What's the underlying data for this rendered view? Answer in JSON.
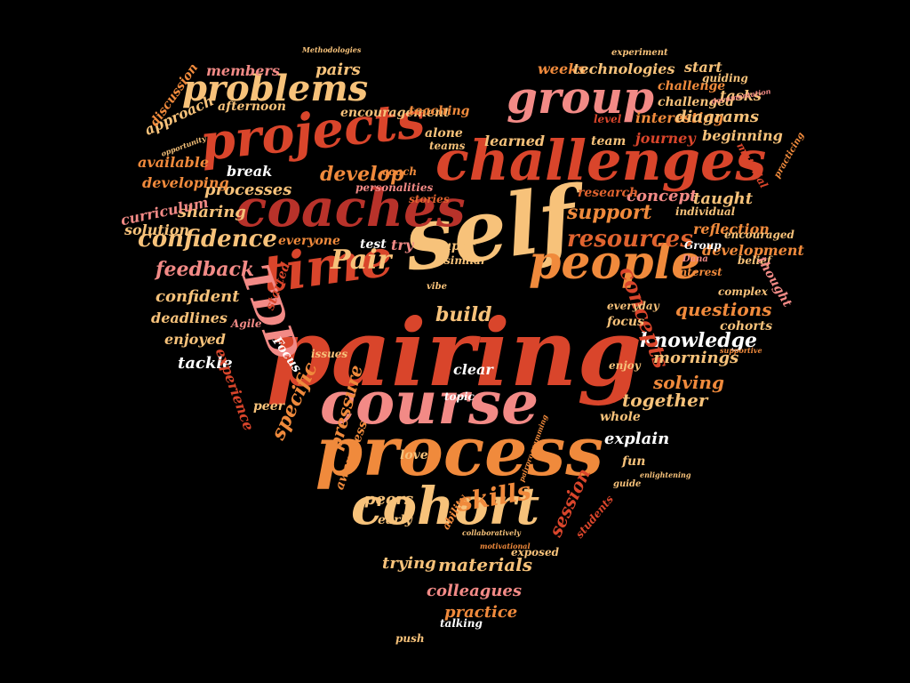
{
  "colors": {
    "background": "#000000",
    "palette": [
      "#d9452b",
      "#f08a3c",
      "#f7c27a",
      "#f28a86",
      "#b8322a",
      "#ffffff",
      "#e0632f"
    ]
  },
  "words": [
    {
      "text": "pairing",
      "size": 104,
      "color": "#d9452b"
    },
    {
      "text": "self",
      "size": 96,
      "color": "#f7c27a"
    },
    {
      "text": "process",
      "size": 76,
      "color": "#f08a3c"
    },
    {
      "text": "course",
      "size": 66,
      "color": "#f28a86"
    },
    {
      "text": "challenges",
      "size": 62,
      "color": "#d9452b"
    },
    {
      "text": "coaches",
      "size": 58,
      "color": "#b8322a"
    },
    {
      "text": "time",
      "size": 58,
      "color": "#d9452b"
    },
    {
      "text": "projects",
      "size": 56,
      "color": "#d9452b"
    },
    {
      "text": "people",
      "size": 52,
      "color": "#f08a3c"
    },
    {
      "text": "cohort",
      "size": 58,
      "color": "#f7c27a"
    },
    {
      "text": "group",
      "size": 50,
      "color": "#f28a86"
    },
    {
      "text": "problems",
      "size": 40,
      "color": "#f7c27a"
    },
    {
      "text": "TDD",
      "size": 44,
      "color": "#f28a86"
    },
    {
      "text": "confidence",
      "size": 26,
      "color": "#f7c27a"
    },
    {
      "text": "resources",
      "size": 26,
      "color": "#e0632f"
    },
    {
      "text": "knowledge",
      "size": 22,
      "color": "#ffffff"
    },
    {
      "text": "concepts",
      "size": 24,
      "color": "#d9452b"
    },
    {
      "text": "Pair",
      "size": 30,
      "color": "#f7c27a"
    },
    {
      "text": "skills",
      "size": 28,
      "color": "#f08a3c"
    },
    {
      "text": "session",
      "size": 20,
      "color": "#d9452b"
    },
    {
      "text": "pressure",
      "size": 20,
      "color": "#f08a3c"
    },
    {
      "text": "specific",
      "size": 22,
      "color": "#f08a3c"
    },
    {
      "text": "support",
      "size": 22,
      "color": "#f08a3c"
    },
    {
      "text": "develop",
      "size": 22,
      "color": "#f08a3c"
    },
    {
      "text": "feedback",
      "size": 22,
      "color": "#f28a86"
    },
    {
      "text": "build",
      "size": 22,
      "color": "#f7c27a"
    },
    {
      "text": "questions",
      "size": 20,
      "color": "#f08a3c"
    },
    {
      "text": "together",
      "size": 20,
      "color": "#f7c27a"
    },
    {
      "text": "solving",
      "size": 20,
      "color": "#f08a3c"
    },
    {
      "text": "materials",
      "size": 20,
      "color": "#f7c27a"
    },
    {
      "text": "colleagues",
      "size": 18,
      "color": "#f28a86"
    },
    {
      "text": "practice",
      "size": 18,
      "color": "#f08a3c"
    },
    {
      "text": "peers",
      "size": 18,
      "color": "#f7c27a"
    },
    {
      "text": "trying",
      "size": 18,
      "color": "#f7c27a"
    },
    {
      "text": "explain",
      "size": 18,
      "color": "#ffffff"
    },
    {
      "text": "mornings",
      "size": 18,
      "color": "#f7c27a"
    },
    {
      "text": "development",
      "size": 16,
      "color": "#f08a3c"
    },
    {
      "text": "reflection",
      "size": 16,
      "color": "#f08a3c"
    },
    {
      "text": "concept",
      "size": 18,
      "color": "#f28a86"
    },
    {
      "text": "taught",
      "size": 18,
      "color": "#f7c27a"
    },
    {
      "text": "research",
      "size": 14,
      "color": "#e0632f"
    },
    {
      "text": "sharing",
      "size": 18,
      "color": "#f7c27a"
    },
    {
      "text": "processes",
      "size": 18,
      "color": "#f7c27a"
    },
    {
      "text": "available",
      "size": 16,
      "color": "#f08a3c"
    },
    {
      "text": "developing",
      "size": 16,
      "color": "#f08a3c"
    },
    {
      "text": "curriculum",
      "size": 16,
      "color": "#f28a86"
    },
    {
      "text": "solution",
      "size": 16,
      "color": "#f7c27a"
    },
    {
      "text": "confident",
      "size": 18,
      "color": "#f7c27a"
    },
    {
      "text": "deadlines",
      "size": 16,
      "color": "#f7c27a"
    },
    {
      "text": "enjoyed",
      "size": 16,
      "color": "#f7c27a"
    },
    {
      "text": "tackle",
      "size": 18,
      "color": "#ffffff"
    },
    {
      "text": "experience",
      "size": 16,
      "color": "#d9452b"
    },
    {
      "text": "peer",
      "size": 14,
      "color": "#f7c27a"
    },
    {
      "text": "interesting",
      "size": 16,
      "color": "#f08a3c"
    },
    {
      "text": "diagrams",
      "size": 18,
      "color": "#f7c27a"
    },
    {
      "text": "journey",
      "size": 16,
      "color": "#d9452b"
    },
    {
      "text": "beginning",
      "size": 16,
      "color": "#f7c27a"
    },
    {
      "text": "learned",
      "size": 16,
      "color": "#f7c27a"
    },
    {
      "text": "team",
      "size": 14,
      "color": "#f7c27a"
    },
    {
      "text": "weeks",
      "size": 16,
      "color": "#f08a3c"
    },
    {
      "text": "technologies",
      "size": 16,
      "color": "#f7c27a"
    },
    {
      "text": "start",
      "size": 16,
      "color": "#f7c27a"
    },
    {
      "text": "challenge",
      "size": 14,
      "color": "#f08a3c"
    },
    {
      "text": "challenged",
      "size": 14,
      "color": "#f7c27a"
    },
    {
      "text": "tasks",
      "size": 16,
      "color": "#f7c27a"
    },
    {
      "text": "pairs",
      "size": 18,
      "color": "#f7c27a"
    },
    {
      "text": "members",
      "size": 16,
      "color": "#f28a86"
    },
    {
      "text": "afternoon",
      "size": 14,
      "color": "#f7c27a"
    },
    {
      "text": "encouragement",
      "size": 14,
      "color": "#f7c27a"
    },
    {
      "text": "approach",
      "size": 16,
      "color": "#f7c27a"
    },
    {
      "text": "discussion",
      "size": 14,
      "color": "#f08a3c"
    },
    {
      "text": "teaching",
      "size": 14,
      "color": "#f08a3c"
    },
    {
      "text": "alone",
      "size": 14,
      "color": "#f7c27a"
    },
    {
      "text": "teams",
      "size": 12,
      "color": "#f7c27a"
    },
    {
      "text": "coach",
      "size": 12,
      "color": "#f08a3c"
    },
    {
      "text": "personalities",
      "size": 12,
      "color": "#f28a86"
    },
    {
      "text": "stories",
      "size": 12,
      "color": "#e0632f"
    },
    {
      "text": "break",
      "size": 16,
      "color": "#ffffff"
    },
    {
      "text": "everyone",
      "size": 14,
      "color": "#f08a3c"
    },
    {
      "text": "test",
      "size": 14,
      "color": "#ffffff"
    },
    {
      "text": "try",
      "size": 16,
      "color": "#f28a86"
    },
    {
      "text": "super",
      "size": 14,
      "color": "#f7c27a"
    },
    {
      "text": "similar",
      "size": 12,
      "color": "#f7c27a"
    },
    {
      "text": "individual",
      "size": 12,
      "color": "#f7c27a"
    },
    {
      "text": "encouraged",
      "size": 12,
      "color": "#f7c27a"
    },
    {
      "text": "belief",
      "size": 12,
      "color": "#f7c27a"
    },
    {
      "text": "thought",
      "size": 14,
      "color": "#f28a86"
    },
    {
      "text": "interest",
      "size": 12,
      "color": "#f08a3c"
    },
    {
      "text": "complex",
      "size": 12,
      "color": "#f7c27a"
    },
    {
      "text": "cohorts",
      "size": 14,
      "color": "#f7c27a"
    },
    {
      "text": "focus",
      "size": 14,
      "color": "#f7c27a"
    },
    {
      "text": "everyday",
      "size": 12,
      "color": "#f7c27a"
    },
    {
      "text": "Focus",
      "size": 14,
      "color": "#ffffff"
    },
    {
      "text": "issues",
      "size": 12,
      "color": "#f7c27a"
    },
    {
      "text": "clear",
      "size": 16,
      "color": "#ffffff"
    },
    {
      "text": "topic",
      "size": 12,
      "color": "#ffffff"
    },
    {
      "text": "enjoy",
      "size": 12,
      "color": "#f7c27a"
    },
    {
      "text": "whole",
      "size": 14,
      "color": "#f7c27a"
    },
    {
      "text": "awareness",
      "size": 14,
      "color": "#f08a3c"
    },
    {
      "text": "love",
      "size": 14,
      "color": "#f7c27a"
    },
    {
      "text": "fun",
      "size": 14,
      "color": "#f7c27a"
    },
    {
      "text": "early",
      "size": 14,
      "color": "#f7c27a"
    },
    {
      "text": "ability",
      "size": 12,
      "color": "#f08a3c"
    },
    {
      "text": "students",
      "size": 12,
      "color": "#d9452b"
    },
    {
      "text": "exposed",
      "size": 12,
      "color": "#f7c27a"
    },
    {
      "text": "push",
      "size": 12,
      "color": "#f7c27a"
    },
    {
      "text": "talking",
      "size": 12,
      "color": "#ffffff"
    },
    {
      "text": "Agile",
      "size": 12,
      "color": "#f28a86"
    },
    {
      "text": "started",
      "size": 14,
      "color": "#d9452b"
    },
    {
      "text": "Group",
      "size": 12,
      "color": "#ffffff"
    },
    {
      "text": "Dana",
      "size": 10,
      "color": "#f28a86"
    },
    {
      "text": "vibe",
      "size": 10,
      "color": "#f7c27a"
    },
    {
      "text": "material",
      "size": 12,
      "color": "#d9452b"
    },
    {
      "text": "guiding",
      "size": 12,
      "color": "#f7c27a"
    },
    {
      "text": "level",
      "size": 12,
      "color": "#d9452b"
    },
    {
      "text": "experiment",
      "size": 10,
      "color": "#f7c27a"
    },
    {
      "text": "practicing",
      "size": 10,
      "color": "#f08a3c"
    },
    {
      "text": "guide",
      "size": 10,
      "color": "#f7c27a"
    },
    {
      "text": "Methodologies",
      "size": 8,
      "color": "#f7c27a"
    },
    {
      "text": "documentation",
      "size": 8,
      "color": "#f28a86"
    },
    {
      "text": "opportunity",
      "size": 8,
      "color": "#f7c27a"
    },
    {
      "text": "motivational",
      "size": 8,
      "color": "#f08a3c"
    },
    {
      "text": "collaboratively",
      "size": 8,
      "color": "#f7c27a"
    },
    {
      "text": "pairprogramming",
      "size": 8,
      "color": "#f08a3c"
    },
    {
      "text": "enlightening",
      "size": 8,
      "color": "#f7c27a"
    },
    {
      "text": "supportive",
      "size": 8,
      "color": "#f08a3c"
    }
  ]
}
